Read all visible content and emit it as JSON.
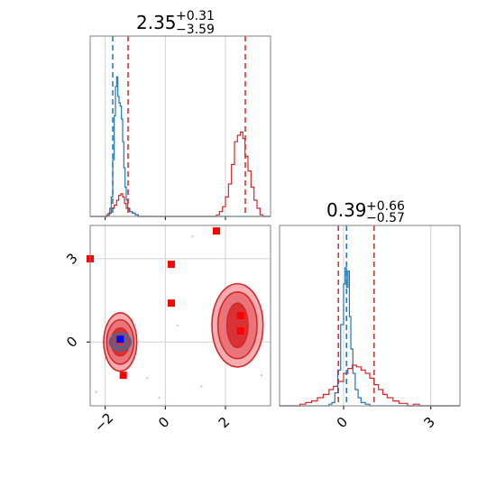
{
  "chart_data": [
    {
      "type": "histogram",
      "panel": "top-left",
      "title": {
        "value": "2.35",
        "plus": "+0.31",
        "minus": "−3.59"
      },
      "xlim": [
        -2.5,
        3.5
      ],
      "grid": true,
      "ticks": [
        -2,
        0,
        2
      ],
      "series": [
        {
          "color": "#1f77b4",
          "bins": [
            -2.2,
            -1.9,
            -1.6,
            -1.3,
            -1.0
          ],
          "heights": [
            0.05,
            0.55,
            1.0,
            0.45,
            0.03
          ],
          "quantiles": [
            -1.75
          ]
        },
        {
          "color": "#d62728",
          "bins": [
            -2.0,
            -1.6,
            -1.2,
            1.7,
            2.1,
            2.4,
            2.7,
            3.1
          ],
          "heights": [
            0.03,
            0.15,
            0.05,
            0.08,
            0.48,
            0.52,
            0.3,
            0.05
          ],
          "quantiles": [
            -1.24,
            2.66
          ]
        }
      ]
    },
    {
      "type": "histogram",
      "panel": "bottom-right",
      "title": {
        "value": "0.39",
        "plus": "+0.66",
        "minus": "−0.57"
      },
      "xlim": [
        -2.2,
        4.0
      ],
      "grid": true,
      "ticks": [
        0,
        3
      ],
      "series": [
        {
          "color": "#1f77b4",
          "peak_x": 0.1,
          "quantiles": [
            0.1
          ]
        },
        {
          "color": "#d62728",
          "quantiles": [
            -0.18,
            1.05
          ]
        }
      ]
    },
    {
      "type": "scatter",
      "panel": "bottom-left",
      "xlim": [
        -2.5,
        3.5
      ],
      "ylim": [
        -2.3,
        4.2
      ],
      "grid": true,
      "xticks": [
        -2,
        0,
        2
      ],
      "yticks": [
        0,
        3
      ],
      "contours": [
        {
          "color": "#d62728",
          "center": [
            -1.5,
            0.0
          ],
          "levels": [
            [
              0.55,
              1.05
            ],
            [
              0.45,
              0.8
            ],
            [
              0.3,
              0.5
            ]
          ]
        },
        {
          "color": "#1f77b4",
          "center": [
            -1.5,
            0.0
          ],
          "levels": [
            [
              0.35,
              0.3
            ],
            [
              0.2,
              0.18
            ]
          ]
        },
        {
          "color": "#d62728",
          "center": [
            2.4,
            0.6
          ],
          "levels": [
            [
              0.85,
              1.5
            ],
            [
              0.65,
              1.2
            ],
            [
              0.35,
              0.8
            ]
          ]
        }
      ],
      "points": [
        {
          "x": -2.5,
          "y": 3.0,
          "color": "#ff0000"
        },
        {
          "x": 0.2,
          "y": 2.8,
          "color": "#ff0000"
        },
        {
          "x": 0.2,
          "y": 1.4,
          "color": "#ff0000"
        },
        {
          "x": 1.7,
          "y": 4.0,
          "color": "#ff0000"
        },
        {
          "x": -1.4,
          "y": -1.2,
          "color": "#ff0000"
        },
        {
          "x": -1.5,
          "y": 0.1,
          "color": "#0000ff"
        },
        {
          "x": 2.5,
          "y": 0.95,
          "color": "#ff0000"
        },
        {
          "x": 2.5,
          "y": 0.4,
          "color": "#ff0000"
        }
      ]
    }
  ]
}
